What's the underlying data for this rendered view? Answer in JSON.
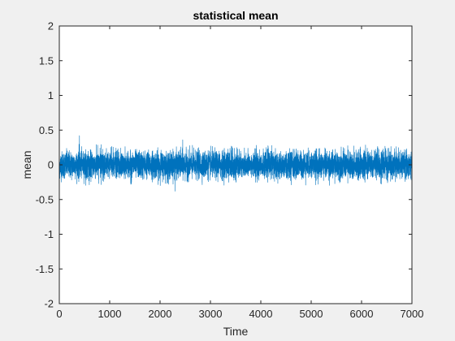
{
  "chart_data": {
    "type": "line",
    "title": "statistical mean",
    "xlabel": "Time",
    "ylabel": "mean",
    "xlim": [
      0,
      7000
    ],
    "ylim": [
      -2,
      2
    ],
    "xticks": [
      0,
      1000,
      2000,
      3000,
      4000,
      5000,
      6000,
      7000
    ],
    "xtick_labels": [
      "0",
      "1000",
      "2000",
      "3000",
      "4000",
      "5000",
      "6000",
      "7000"
    ],
    "yticks": [
      2,
      1.5,
      1,
      0.5,
      0,
      -0.5,
      -1,
      -1.5,
      -2
    ],
    "ytick_labels": [
      "2",
      "1.5",
      "1",
      "0.5",
      "0",
      "-0.5",
      "-1",
      "-1.5",
      "-2"
    ],
    "grid": false,
    "series": [
      {
        "color": "#0072bd",
        "x_range": [
          0,
          7000
        ],
        "n_points": 7000,
        "approx_mean": 0,
        "approx_min": -0.38,
        "approx_max": 0.42,
        "peaks": [
          {
            "x": 400,
            "y": 0.42
          },
          {
            "x": 2450,
            "y": 0.36
          },
          {
            "x": 2300,
            "y": -0.38
          }
        ]
      }
    ],
    "background": "#f0f0f0",
    "plot_background": "#ffffff"
  }
}
